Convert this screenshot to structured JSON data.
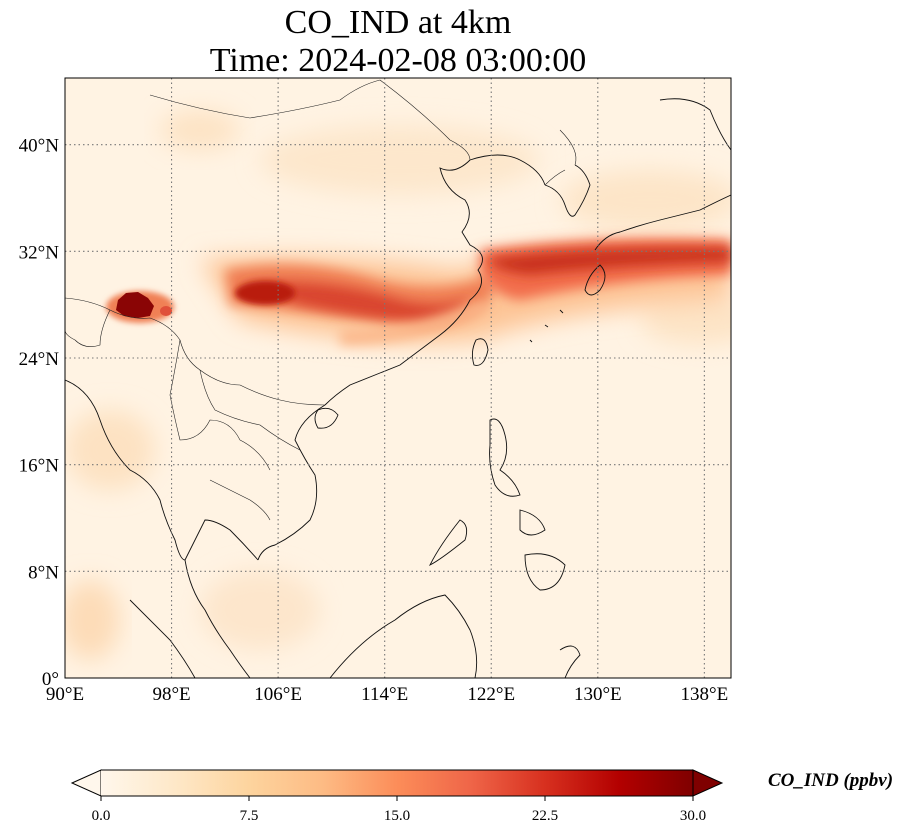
{
  "title": {
    "line1": "CO_IND at 4km",
    "line2": "Time: 2024-02-08 03:00:00"
  },
  "map": {
    "projection": "PlateCarree",
    "lon_range": [
      90,
      140
    ],
    "lat_range": [
      0,
      45
    ],
    "gridlines": "dotted",
    "x_ticks": [
      "90°E",
      "98°E",
      "106°E",
      "114°E",
      "122°E",
      "130°E",
      "138°E"
    ],
    "y_ticks": [
      "0°",
      "8°N",
      "16°N",
      "24°N",
      "32°N",
      "40°N"
    ],
    "features": [
      "coastlines",
      "country borders"
    ],
    "plume_color": "#b31a0a",
    "hotspot_color": "#6e0000"
  },
  "colorbar": {
    "label": "CO_IND (ppbv)",
    "ticks": [
      "0.0",
      "7.5",
      "15.0",
      "22.5",
      "30.0"
    ],
    "extend": "both",
    "colormap": "OrRd",
    "colors": [
      "#fff7ec",
      "#fee8c8",
      "#fdd49e",
      "#fdbb84",
      "#fc8d59",
      "#ef6548",
      "#d7301f",
      "#b30000",
      "#7f0000"
    ]
  }
}
